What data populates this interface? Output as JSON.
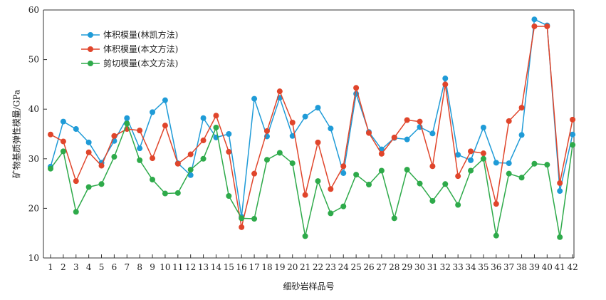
{
  "chart_data": {
    "type": "line",
    "title": "",
    "xlabel": "细砂岩样品号",
    "ylabel": "矿物基质弹性模量/GPa",
    "ylim": [
      10,
      60
    ],
    "yticks": [
      10,
      20,
      30,
      40,
      50,
      60
    ],
    "grid": false,
    "legend_position": "top-left",
    "categories": [
      "1",
      "2",
      "3",
      "4",
      "5",
      "6",
      "7",
      "8",
      "9",
      "10",
      "11",
      "12",
      "13",
      "14",
      "15",
      "16",
      "17",
      "18",
      "19",
      "20",
      "21",
      "22",
      "23",
      "24",
      "25",
      "26",
      "27",
      "28",
      "29",
      "30",
      "31",
      "32",
      "33",
      "34",
      "35",
      "36",
      "37",
      "38",
      "39",
      "40",
      "41",
      "42"
    ],
    "series": [
      {
        "name": "体积模量(林凯方法)",
        "color": "#1f9bd7",
        "values": [
          28.4,
          37.5,
          36.0,
          33.3,
          29.2,
          33.6,
          38.2,
          32.1,
          39.4,
          41.8,
          29.1,
          26.7,
          38.2,
          34.3,
          35.0,
          18.3,
          42.1,
          34.5,
          42.3,
          34.6,
          38.5,
          40.3,
          36.1,
          27.1,
          43.1,
          35.4,
          31.9,
          34.2,
          33.9,
          36.4,
          35.1,
          46.2,
          30.8,
          29.7,
          36.3,
          29.2,
          29.1,
          34.8,
          58.1,
          56.9,
          23.5,
          34.9
        ]
      },
      {
        "name": "体积模量(本文方法)",
        "color": "#e0452b",
        "values": [
          34.9,
          33.5,
          25.5,
          31.3,
          28.6,
          34.6,
          36.0,
          35.7,
          30.1,
          36.7,
          29.0,
          30.9,
          33.7,
          38.7,
          31.4,
          16.2,
          27.0,
          35.6,
          43.6,
          37.3,
          22.7,
          33.3,
          23.9,
          28.5,
          44.3,
          35.2,
          31.0,
          34.3,
          37.8,
          37.5,
          28.5,
          45.0,
          26.5,
          31.5,
          31.1,
          20.9,
          37.6,
          40.3,
          56.7,
          56.7,
          25.1,
          37.9
        ]
      },
      {
        "name": "剪切模量(本文方法)",
        "color": "#2eaa4a",
        "values": [
          28.0,
          31.5,
          19.3,
          24.3,
          24.9,
          30.4,
          37.1,
          29.7,
          25.8,
          23.0,
          23.1,
          27.8,
          30.0,
          36.3,
          22.5,
          18.0,
          17.9,
          29.8,
          31.2,
          29.1,
          14.4,
          25.5,
          19.0,
          20.4,
          26.8,
          24.8,
          27.6,
          18.0,
          27.8,
          25.0,
          21.5,
          24.9,
          20.7,
          27.6,
          30.0,
          14.5,
          27.0,
          26.2,
          29.0,
          28.8,
          14.2,
          32.8
        ]
      }
    ]
  }
}
